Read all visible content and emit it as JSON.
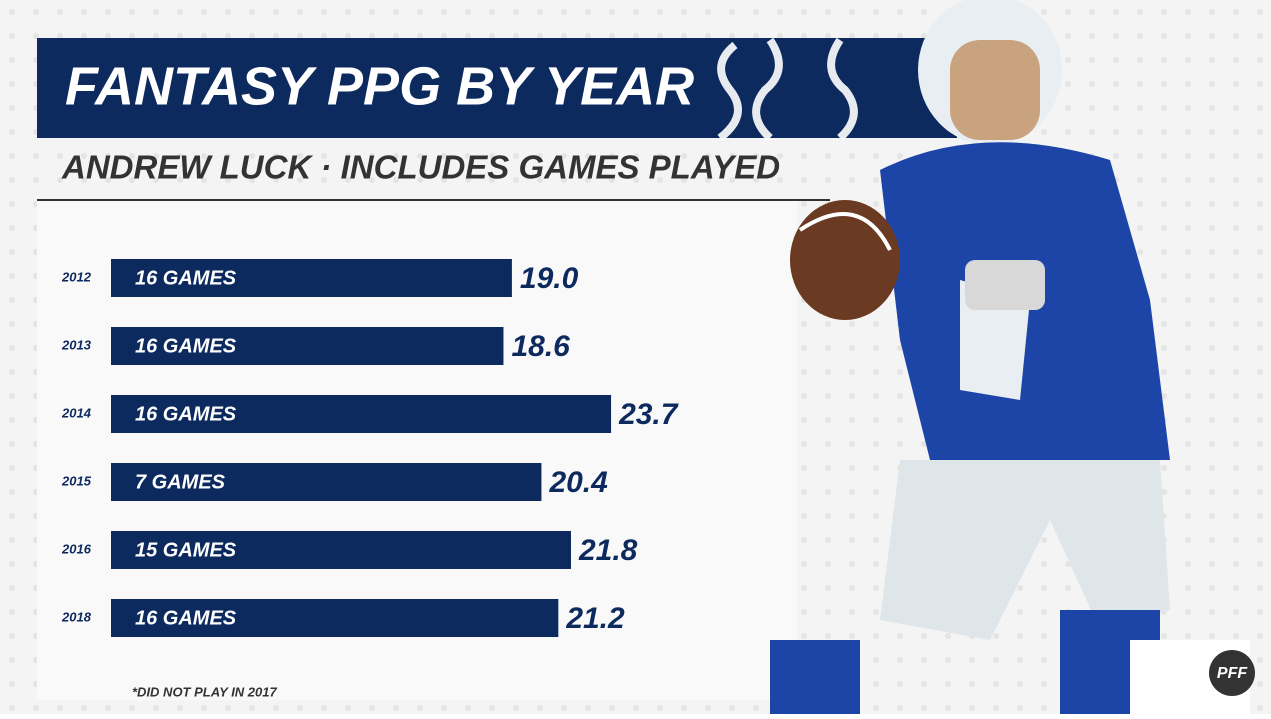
{
  "chart_data": {
    "type": "bar",
    "orientation": "horizontal",
    "title": "FANTASY PPG BY YEAR",
    "subtitle": "ANDREW LUCK · INCLUDES GAMES PLAYED",
    "categories": [
      "2012",
      "2013",
      "2014",
      "2015",
      "2016",
      "2018"
    ],
    "bar_labels": [
      "16 GAMES",
      "16 GAMES",
      "16 GAMES",
      "7 GAMES",
      "15 GAMES",
      "16 GAMES"
    ],
    "values": [
      19.0,
      18.6,
      23.7,
      20.4,
      21.8,
      21.2
    ],
    "value_labels": [
      "19.0",
      "18.6",
      "23.7",
      "20.4",
      "21.8",
      "21.2"
    ],
    "color": "#0d2a5f",
    "footnote": "*DID NOT PLAY IN 2017",
    "logo": "PFF"
  }
}
